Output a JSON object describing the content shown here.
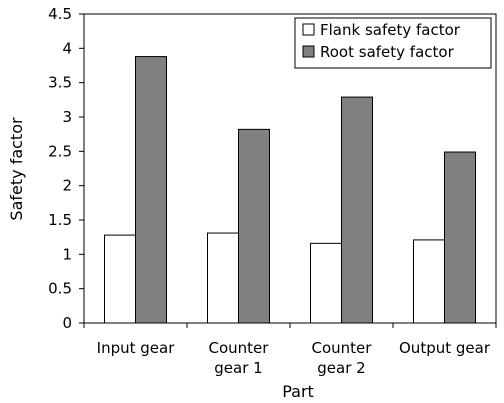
{
  "chart_data": {
    "type": "bar",
    "categories": [
      [
        "Input gear"
      ],
      [
        "Counter",
        "gear 1"
      ],
      [
        "Counter",
        "gear 2"
      ],
      [
        "Output gear"
      ]
    ],
    "series": [
      {
        "name": "Flank safety factor",
        "values": [
          1.28,
          1.31,
          1.16,
          1.21
        ],
        "color": "#ffffff"
      },
      {
        "name": "Root safety factor",
        "values": [
          3.88,
          2.82,
          3.29,
          2.49
        ],
        "color": "#808080"
      }
    ],
    "title": "",
    "xlabel": "Part",
    "ylabel": "Safety factor",
    "ylim": [
      0,
      4.5
    ],
    "yticks": [
      "0",
      "0.5",
      "1",
      "1.5",
      "2",
      "2.5",
      "3",
      "3.5",
      "4",
      "4.5"
    ],
    "grid": false,
    "legend_position": "top-right"
  }
}
